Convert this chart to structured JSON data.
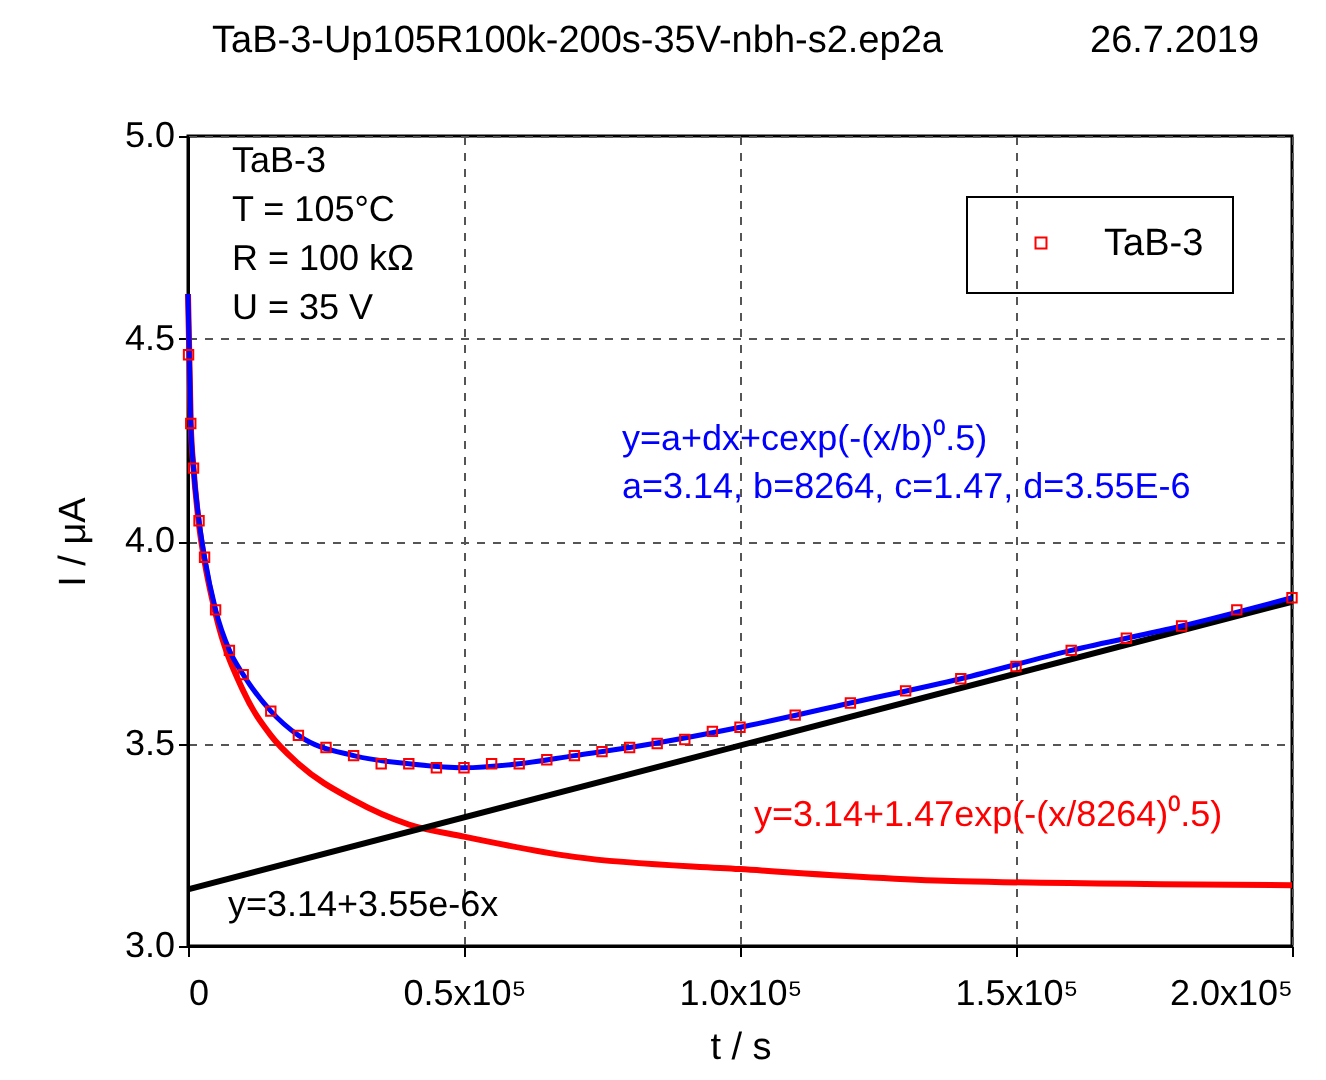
{
  "chart_data": {
    "type": "scatter",
    "title": "TaB-3-Up105R100k-200s-35V-nbh-s2.ep2a",
    "subtitle": "26.7.2019",
    "xlabel": "t / s",
    "ylabel": "I / μA",
    "annotations": [
      "TaB-3",
      "T = 105°C",
      "R = 100 kΩ",
      "U = 35 V",
      "y=a+dx+cexp(-(x/b)⁰.5)",
      "a=3.14, b=8264, c=1.47, d=3.55E-6",
      "y=3.14+1.47exp(-(x/8264)⁰.5)",
      "y=3.14+3.55e-6x"
    ],
    "series": [
      {
        "name": "TaB-3",
        "marker": "square",
        "color": "#ff0000",
        "x": [
          100,
          500,
          1000,
          2000,
          3000,
          5000,
          7500,
          10000,
          15000,
          20000,
          25000,
          30000,
          35000,
          40000,
          45000,
          50000,
          55000,
          60000,
          65000,
          70000,
          75000,
          80000,
          85000,
          90000,
          95000,
          100000,
          110000,
          120000,
          130000,
          140000,
          150000,
          160000,
          170000,
          180000,
          190000,
          200000
        ],
        "values": [
          4.46,
          4.29,
          4.18,
          4.05,
          3.96,
          3.83,
          3.73,
          3.67,
          3.58,
          3.52,
          3.49,
          3.47,
          3.45,
          3.45,
          3.44,
          3.44,
          3.45,
          3.45,
          3.46,
          3.47,
          3.48,
          3.49,
          3.5,
          3.51,
          3.53,
          3.54,
          3.57,
          3.6,
          3.63,
          3.66,
          3.69,
          3.73,
          3.76,
          3.79,
          3.83,
          3.86
        ]
      },
      {
        "type": "line",
        "color": "#ff0000",
        "x": [
          0,
          500,
          1000,
          2000,
          3000,
          5000,
          10000,
          15000,
          20000,
          30000,
          40000,
          50000,
          70000,
          100000,
          140000,
          200000
        ],
        "values": [
          4.61,
          4.29,
          4.18,
          4.04,
          3.95,
          3.82,
          3.63,
          3.52,
          3.45,
          3.36,
          3.3,
          3.27,
          3.22,
          3.19,
          3.16,
          3.15
        ]
      },
      {
        "type": "line",
        "color": "#000000",
        "x": [
          0,
          200000
        ],
        "values": [
          3.14,
          3.85
        ]
      },
      {
        "type": "line",
        "color": "#0000ff",
        "x": [
          0,
          500,
          1000,
          2000,
          3000,
          5000,
          7500,
          10000,
          15000,
          20000,
          30000,
          40000,
          50000,
          60000,
          70000,
          80000,
          100000,
          120000,
          140000,
          160000,
          180000,
          200000
        ],
        "values": [
          4.61,
          4.29,
          4.18,
          4.05,
          3.96,
          3.83,
          3.73,
          3.67,
          3.58,
          3.52,
          3.47,
          3.45,
          3.44,
          3.45,
          3.47,
          3.49,
          3.54,
          3.6,
          3.66,
          3.73,
          3.79,
          3.86
        ]
      }
    ],
    "xlim": [
      0,
      200000
    ],
    "xticks": [
      0,
      {
        "value": 50000,
        "label": "0.5x10⁵"
      },
      {
        "value": 100000,
        "label": "1.0x10⁵"
      },
      {
        "value": 150000,
        "label": "1.5x10⁵"
      },
      {
        "value": 200000,
        "label": "2.0x10⁵"
      }
    ],
    "ylim": [
      3,
      5
    ],
    "yticks": [
      {
        "value": 3,
        "label": "3.0"
      },
      {
        "value": 3.5,
        "label": "3.5"
      },
      {
        "value": 4,
        "label": "4.0"
      },
      {
        "value": 4.5,
        "label": "4.5"
      },
      {
        "value": 5,
        "label": "5.0"
      }
    ],
    "grid": true,
    "legend": "top right",
    "line_style": "solid"
  }
}
